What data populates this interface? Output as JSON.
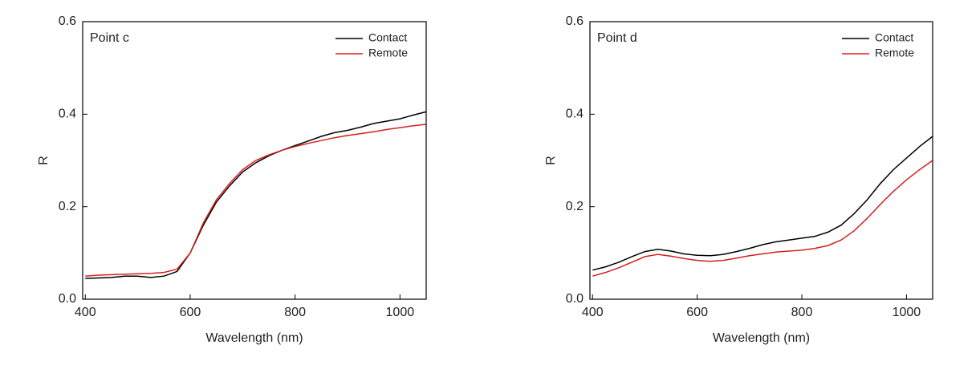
{
  "chart_data": [
    {
      "type": "line",
      "annotation": "Point c",
      "x_label": "Wavelength (nm)",
      "y_label": "R",
      "x": [
        400,
        425,
        450,
        475,
        500,
        525,
        550,
        575,
        600,
        625,
        650,
        675,
        700,
        725,
        750,
        775,
        800,
        825,
        850,
        875,
        900,
        925,
        950,
        975,
        1000,
        1025,
        1050
      ],
      "series": [
        {
          "name": "Contact",
          "color": "#000000",
          "values": [
            0.045,
            0.046,
            0.047,
            0.05,
            0.05,
            0.047,
            0.05,
            0.06,
            0.1,
            0.16,
            0.21,
            0.245,
            0.275,
            0.295,
            0.31,
            0.322,
            0.332,
            0.342,
            0.352,
            0.36,
            0.365,
            0.372,
            0.38,
            0.385,
            0.39,
            0.398,
            0.405
          ]
        },
        {
          "name": "Remote",
          "color": "#d62020",
          "values": [
            0.05,
            0.052,
            0.053,
            0.054,
            0.055,
            0.056,
            0.058,
            0.065,
            0.1,
            0.165,
            0.215,
            0.25,
            0.28,
            0.3,
            0.312,
            0.322,
            0.33,
            0.337,
            0.343,
            0.349,
            0.354,
            0.358,
            0.362,
            0.367,
            0.371,
            0.375,
            0.378
          ]
        }
      ],
      "xlim": [
        395,
        1050
      ],
      "ylim": [
        0,
        0.6
      ],
      "xticks": [
        400,
        600,
        800,
        1000
      ],
      "yticks": [
        {
          "value": 0,
          "label": "0.0"
        },
        {
          "value": 0.2,
          "label": "0.2"
        },
        {
          "value": 0.4,
          "label": "0.4"
        },
        {
          "value": 0.6,
          "label": "0.6"
        }
      ],
      "legend": "upper right"
    },
    {
      "type": "line",
      "annotation": "Point d",
      "x_label": "Wavelength (nm)",
      "y_label": "R",
      "x": [
        400,
        425,
        450,
        475,
        500,
        525,
        550,
        575,
        600,
        625,
        650,
        675,
        700,
        725,
        750,
        775,
        800,
        825,
        850,
        875,
        900,
        925,
        950,
        975,
        1000,
        1025,
        1050
      ],
      "series": [
        {
          "name": "Contact",
          "color": "#000000",
          "values": [
            0.063,
            0.07,
            0.08,
            0.092,
            0.103,
            0.108,
            0.104,
            0.098,
            0.095,
            0.094,
            0.097,
            0.103,
            0.11,
            0.118,
            0.124,
            0.128,
            0.132,
            0.136,
            0.145,
            0.16,
            0.185,
            0.215,
            0.25,
            0.28,
            0.305,
            0.33,
            0.352
          ]
        },
        {
          "name": "Remote",
          "color": "#d62020",
          "values": [
            0.05,
            0.058,
            0.068,
            0.08,
            0.092,
            0.097,
            0.093,
            0.088,
            0.084,
            0.082,
            0.084,
            0.089,
            0.094,
            0.098,
            0.102,
            0.104,
            0.106,
            0.11,
            0.116,
            0.128,
            0.148,
            0.175,
            0.205,
            0.233,
            0.258,
            0.28,
            0.3
          ]
        }
      ],
      "xlim": [
        395,
        1050
      ],
      "ylim": [
        0,
        0.6
      ],
      "xticks": [
        400,
        600,
        800,
        1000
      ],
      "yticks": [
        {
          "value": 0,
          "label": "0.0"
        },
        {
          "value": 0.2,
          "label": "0.2"
        },
        {
          "value": 0.4,
          "label": "0.4"
        },
        {
          "value": 0.6,
          "label": "0.6"
        }
      ],
      "legend": "upper right"
    }
  ]
}
